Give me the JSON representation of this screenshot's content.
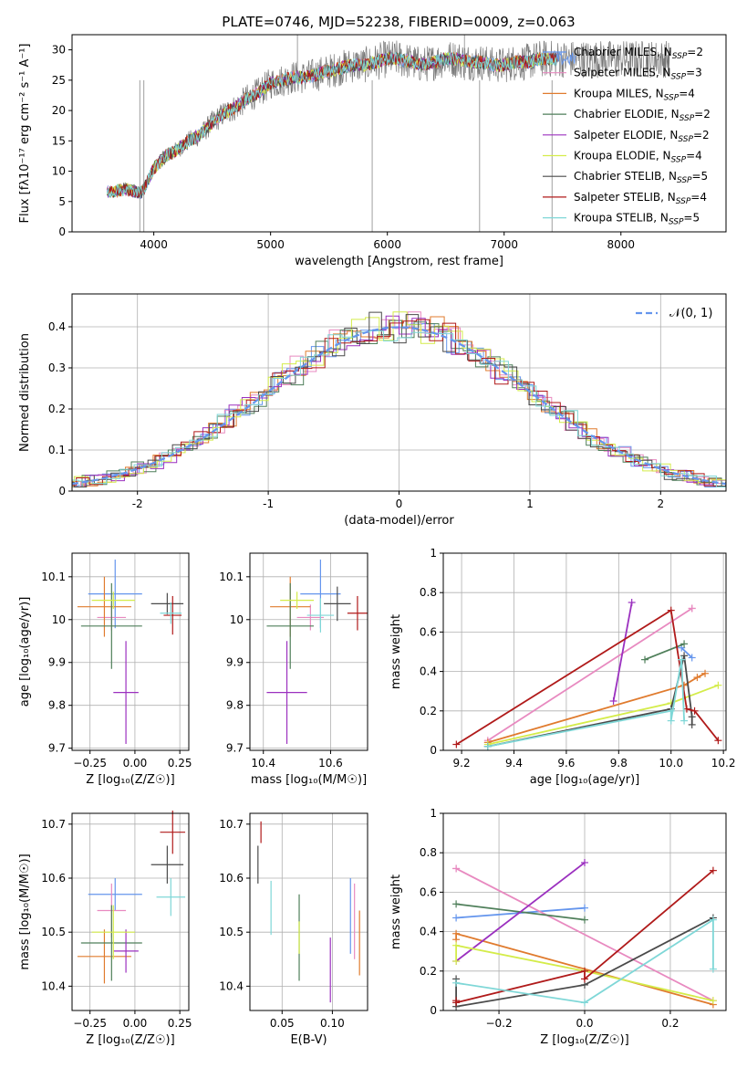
{
  "figure_title": "PLATE=0746, MJD=52238, FIBERID=0009, z=0.063",
  "models": [
    {
      "name": "Chabrier MILES",
      "nssp": "2",
      "color": "#6495ED"
    },
    {
      "name": "Salpeter MILES",
      "nssp": "3",
      "color": "#E88AC0"
    },
    {
      "name": "Kroupa MILES",
      "nssp": "4",
      "color": "#E07B2E"
    },
    {
      "name": "Chabrier ELODIE",
      "nssp": "2",
      "color": "#4F7F5A"
    },
    {
      "name": "Salpeter ELODIE",
      "nssp": "2",
      "color": "#9B30BF"
    },
    {
      "name": "Kroupa ELODIE",
      "nssp": "4",
      "color": "#D4EC4A"
    },
    {
      "name": "Chabrier STELIB",
      "nssp": "5",
      "color": "#4A4A4A"
    },
    {
      "name": "Salpeter STELIB",
      "nssp": "4",
      "color": "#B01A1A"
    },
    {
      "name": "Kroupa STELIB",
      "nssp": "5",
      "color": "#7FD7D7"
    }
  ],
  "chart_data": [
    {
      "id": "spectrum",
      "type": "line",
      "xlabel": "wavelength [Angstrom, rest frame]",
      "ylabel": "Flux [fλ10⁻¹⁷ erg cm⁻² s⁻¹ A⁻¹]",
      "xlim": [
        3300,
        8900
      ],
      "ylim": [
        0,
        32.5
      ],
      "xticks": [
        4000,
        5000,
        6000,
        7000,
        8000
      ],
      "yticks": [
        0,
        5,
        10,
        15,
        20,
        25,
        30
      ],
      "grid": false,
      "legend": "right",
      "continuum": {
        "x": [
          3600,
          3750,
          3900,
          4000,
          4100,
          4200,
          4300,
          4400,
          4500,
          4600,
          4700,
          4800,
          4900,
          5000,
          5100,
          5200,
          5300,
          5400,
          5500,
          5600,
          5700,
          5800,
          5900,
          6000,
          6100,
          6200,
          6300,
          6400,
          6500,
          6600,
          6700,
          6800,
          6900,
          7000,
          7100,
          7200,
          7300,
          7400
        ],
        "y": [
          6.5,
          7.0,
          6.5,
          10.5,
          12.5,
          13.5,
          15.0,
          16.0,
          18.0,
          19.5,
          20.5,
          22.0,
          23.0,
          24.5,
          25.0,
          25.5,
          25.5,
          26.0,
          26.5,
          27.0,
          27.5,
          27.5,
          28.0,
          28.5,
          28.5,
          28.0,
          27.5,
          28.0,
          28.5,
          28.5,
          28.0,
          28.0,
          27.5,
          27.5,
          28.0,
          28.0,
          28.5,
          28.5
        ]
      }
    },
    {
      "id": "residuals",
      "type": "step",
      "xlabel": "(data-model)/error",
      "ylabel": "Normed distribution",
      "xlim": [
        -2.5,
        2.5
      ],
      "ylim": [
        0,
        0.48
      ],
      "xticks": [
        -2,
        -1,
        0,
        1,
        2
      ],
      "yticks": [
        0.0,
        0.1,
        0.2,
        0.3,
        0.4
      ],
      "grid": true,
      "legend": "top-right",
      "legend_label": "𝒩(0, 1)",
      "reference_curve": "normal(0,1)"
    },
    {
      "id": "age_vs_Z",
      "type": "errorbar",
      "xlabel": "Z [log₁₀(Z/Z☉)]",
      "ylabel": "age  [log₁₀(age/yr)]",
      "xlim": [
        -0.35,
        0.3
      ],
      "ylim": [
        9.695,
        10.155
      ],
      "xticks": [
        -0.25,
        0.0,
        0.25
      ],
      "xticklabels": [
        "−0.25",
        "0.00",
        "0.25"
      ],
      "yticks": [
        9.7,
        9.8,
        9.9,
        10.0,
        10.1
      ],
      "grid": true,
      "points": [
        {
          "x": -0.11,
          "xerr": 0.15,
          "y": 10.06,
          "yerr": 0.08
        },
        {
          "x": -0.13,
          "xerr": 0.08,
          "y": 10.005,
          "yerr": 0.03
        },
        {
          "x": -0.17,
          "xerr": 0.15,
          "y": 10.03,
          "yerr": 0.07
        },
        {
          "x": -0.13,
          "xerr": 0.17,
          "y": 9.985,
          "yerr": 0.1
        },
        {
          "x": -0.05,
          "xerr": 0.07,
          "y": 9.83,
          "yerr": 0.12
        },
        {
          "x": -0.12,
          "xerr": 0.12,
          "y": 10.045,
          "yerr": 0.02
        },
        {
          "x": 0.18,
          "xerr": 0.09,
          "y": 10.037,
          "yerr": 0.025
        },
        {
          "x": 0.21,
          "xerr": 0.05,
          "y": 10.01,
          "yerr": 0.045
        },
        {
          "x": 0.2,
          "xerr": 0.06,
          "y": 10.015,
          "yerr": 0.025
        }
      ]
    },
    {
      "id": "age_vs_mass",
      "type": "errorbar",
      "xlabel": "mass [log₁₀(M/M☉)]",
      "ylabel": "",
      "xlim": [
        10.36,
        10.71
      ],
      "ylim": [
        9.695,
        10.155
      ],
      "xticks": [
        10.4,
        10.6
      ],
      "xticklabels": [
        "10.4",
        "10.6"
      ],
      "yticks": [
        9.7,
        9.8,
        9.9,
        10.0,
        10.1
      ],
      "grid": true,
      "points": [
        {
          "x": 10.57,
          "xerr": 0.06,
          "y": 10.06,
          "yerr": 0.08
        },
        {
          "x": 10.54,
          "xerr": 0.04,
          "y": 10.005,
          "yerr": 0.03
        },
        {
          "x": 10.48,
          "xerr": 0.06,
          "y": 10.03,
          "yerr": 0.07
        },
        {
          "x": 10.48,
          "xerr": 0.07,
          "y": 9.985,
          "yerr": 0.1
        },
        {
          "x": 10.47,
          "xerr": 0.06,
          "y": 9.83,
          "yerr": 0.12
        },
        {
          "x": 10.5,
          "xerr": 0.05,
          "y": 10.045,
          "yerr": 0.02
        },
        {
          "x": 10.62,
          "xerr": 0.04,
          "y": 10.037,
          "yerr": 0.04
        },
        {
          "x": 10.68,
          "xerr": 0.03,
          "y": 10.015,
          "yerr": 0.04
        },
        {
          "x": 10.57,
          "xerr": 0.04,
          "y": 10.01,
          "yerr": 0.04
        }
      ]
    },
    {
      "id": "weight_vs_age",
      "type": "line",
      "xlabel": "age  [log₁₀(age/yr)]",
      "ylabel": "mass weight",
      "xlim": [
        9.13,
        10.21
      ],
      "ylim": [
        0.0,
        1.0
      ],
      "xticks": [
        9.2,
        9.4,
        9.6,
        9.8,
        10.0,
        10.2
      ],
      "xticklabels": [
        "9.2",
        "9.4",
        "9.6",
        "9.8",
        "10.0",
        "10.2"
      ],
      "yticks": [
        0.0,
        0.2,
        0.4,
        0.6,
        0.8,
        1.0
      ],
      "grid": true,
      "series": [
        {
          "x": [
            10.04,
            10.08
          ],
          "y": [
            0.52,
            0.47
          ]
        },
        {
          "x": [
            9.3,
            10.08,
            10.08
          ],
          "y": [
            0.05,
            0.72,
            0.72
          ]
        },
        {
          "x": [
            9.3,
            10.05,
            10.1,
            10.13
          ],
          "y": [
            0.04,
            0.33,
            0.37,
            0.39
          ]
        },
        {
          "x": [
            9.9,
            10.05
          ],
          "y": [
            0.46,
            0.54
          ]
        },
        {
          "x": [
            9.78,
            9.85
          ],
          "y": [
            0.25,
            0.75
          ]
        },
        {
          "x": [
            9.3,
            10.0,
            10.18
          ],
          "y": [
            0.03,
            0.24,
            0.33
          ]
        },
        {
          "x": [
            9.3,
            10.0,
            10.05,
            10.08,
            10.08
          ],
          "y": [
            0.02,
            0.21,
            0.48,
            0.17,
            0.13
          ]
        },
        {
          "x": [
            9.18,
            10.0,
            10.06,
            10.09,
            10.18
          ],
          "y": [
            0.03,
            0.71,
            0.21,
            0.2,
            0.05
          ]
        },
        {
          "x": [
            9.3,
            10.0,
            10.0,
            10.04,
            10.05
          ],
          "y": [
            0.02,
            0.2,
            0.15,
            0.46,
            0.15
          ]
        }
      ]
    },
    {
      "id": "mass_vs_Z",
      "type": "errorbar",
      "xlabel": "Z [log₁₀(Z/Z☉)]",
      "ylabel": "mass [log₁₀(M/M☉)]",
      "xlim": [
        -0.35,
        0.3
      ],
      "ylim": [
        10.355,
        10.72
      ],
      "xticks": [
        -0.25,
        0.0,
        0.25
      ],
      "xticklabels": [
        "−0.25",
        "0.00",
        "0.25"
      ],
      "yticks": [
        10.4,
        10.5,
        10.6,
        10.7
      ],
      "grid": true,
      "points": [
        {
          "x": -0.11,
          "xerr": 0.15,
          "y": 10.57,
          "yerr": 0.03
        },
        {
          "x": -0.13,
          "xerr": 0.08,
          "y": 10.54,
          "yerr": 0.05
        },
        {
          "x": -0.17,
          "xerr": 0.15,
          "y": 10.455,
          "yerr": 0.05
        },
        {
          "x": -0.13,
          "xerr": 0.17,
          "y": 10.48,
          "yerr": 0.07
        },
        {
          "x": -0.05,
          "xerr": 0.07,
          "y": 10.465,
          "yerr": 0.04
        },
        {
          "x": -0.12,
          "xerr": 0.12,
          "y": 10.5,
          "yerr": 0.05
        },
        {
          "x": 0.18,
          "xerr": 0.09,
          "y": 10.625,
          "yerr": 0.035
        },
        {
          "x": 0.21,
          "xerr": 0.07,
          "y": 10.685,
          "yerr": 0.04
        },
        {
          "x": 0.2,
          "xerr": 0.08,
          "y": 10.565,
          "yerr": 0.035
        }
      ]
    },
    {
      "id": "mass_vs_EBV",
      "type": "errorbar",
      "xlabel": "E(B-V)",
      "ylabel": "",
      "xlim": [
        0.018,
        0.135
      ],
      "ylim": [
        10.355,
        10.72
      ],
      "xticks": [
        0.05,
        0.1
      ],
      "xticklabels": [
        "0.05",
        "0.10"
      ],
      "yticks": [
        10.4,
        10.5,
        10.6,
        10.7
      ],
      "grid": true,
      "points": [
        {
          "x": 0.118,
          "xerr": 0.0,
          "y": 10.53,
          "yerr": 0.07
        },
        {
          "x": 0.122,
          "xerr": 0.0,
          "y": 10.52,
          "yerr": 0.07
        },
        {
          "x": 0.127,
          "xerr": 0.0,
          "y": 10.48,
          "yerr": 0.06
        },
        {
          "x": 0.067,
          "xerr": 0.0,
          "y": 10.49,
          "yerr": 0.08
        },
        {
          "x": 0.098,
          "xerr": 0.0,
          "y": 10.43,
          "yerr": 0.06
        },
        {
          "x": 0.067,
          "xerr": 0.0,
          "y": 10.49,
          "yerr": 0.03
        },
        {
          "x": 0.026,
          "xerr": 0.0,
          "y": 10.625,
          "yerr": 0.035
        },
        {
          "x": 0.029,
          "xerr": 0.0,
          "y": 10.685,
          "yerr": 0.02
        },
        {
          "x": 0.039,
          "xerr": 0.0,
          "y": 10.545,
          "yerr": 0.05
        }
      ]
    },
    {
      "id": "weight_vs_Z",
      "type": "line",
      "xlabel": "Z [log₁₀(Z/Z☉)]",
      "ylabel": "mass weight",
      "xlim": [
        -0.33,
        0.33
      ],
      "ylim": [
        0.0,
        1.0
      ],
      "xticks": [
        -0.2,
        0.0,
        0.2
      ],
      "xticklabels": [
        "−0.2",
        "0.0",
        "0.2"
      ],
      "yticks": [
        0.0,
        0.2,
        0.4,
        0.6,
        0.8,
        1.0
      ],
      "grid": true,
      "series": [
        {
          "x": [
            -0.3,
            0.0
          ],
          "y": [
            0.47,
            0.52
          ]
        },
        {
          "x": [
            -0.3,
            0.3,
            -0.3
          ],
          "y": [
            0.72,
            0.05,
            0.72
          ]
        },
        {
          "x": [
            -0.3,
            -0.3,
            0.3
          ],
          "y": [
            0.36,
            0.39,
            0.03
          ]
        },
        {
          "x": [
            -0.3,
            0.0
          ],
          "y": [
            0.54,
            0.46
          ]
        },
        {
          "x": [
            -0.3,
            0.0
          ],
          "y": [
            0.25,
            0.75
          ]
        },
        {
          "x": [
            -0.3,
            -0.3,
            0.0,
            0.3
          ],
          "y": [
            0.25,
            0.33,
            0.2,
            0.05
          ]
        },
        {
          "x": [
            -0.3,
            -0.3,
            0.0,
            0.3
          ],
          "y": [
            0.16,
            0.02,
            0.13,
            0.47
          ]
        },
        {
          "x": [
            -0.3,
            -0.3,
            0.0,
            0.0,
            0.3
          ],
          "y": [
            0.05,
            0.04,
            0.2,
            0.16,
            0.71
          ]
        },
        {
          "x": [
            -0.3,
            0.0,
            0.3,
            0.3
          ],
          "y": [
            0.14,
            0.04,
            0.46,
            0.21
          ]
        }
      ]
    }
  ]
}
